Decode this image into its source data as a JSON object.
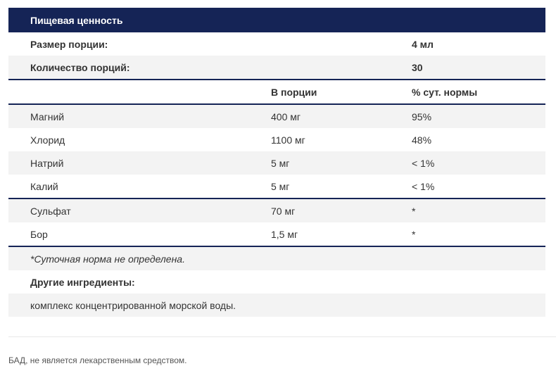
{
  "title": "Пищевая ценность",
  "serving": {
    "size_label": "Размер порции:",
    "size_value": "4 мл",
    "count_label": "Количество порций:",
    "count_value": "30"
  },
  "columns": {
    "name": "",
    "per_serving": "В порции",
    "daily_value": "% сут. нормы"
  },
  "group1": [
    {
      "name": "Магний",
      "amount": "400 мг",
      "dv": "95%"
    },
    {
      "name": "Хлорид",
      "amount": "1100 мг",
      "dv": "48%"
    },
    {
      "name": "Натрий",
      "amount": "5 мг",
      "dv": "< 1%"
    },
    {
      "name": "Калий",
      "amount": "5 мг",
      "dv": "< 1%"
    }
  ],
  "group2": [
    {
      "name": "Сульфат",
      "amount": "70 мг",
      "dv": "*"
    },
    {
      "name": "Бор",
      "amount": "1,5 мг",
      "dv": "*"
    }
  ],
  "notes": {
    "dv_note": "*Суточная норма не определена.",
    "other_label": "Другие ингредиенты:",
    "other_value": "комплекс концентрированной морской воды."
  },
  "footer": "БАД, не является лекарственным средством."
}
